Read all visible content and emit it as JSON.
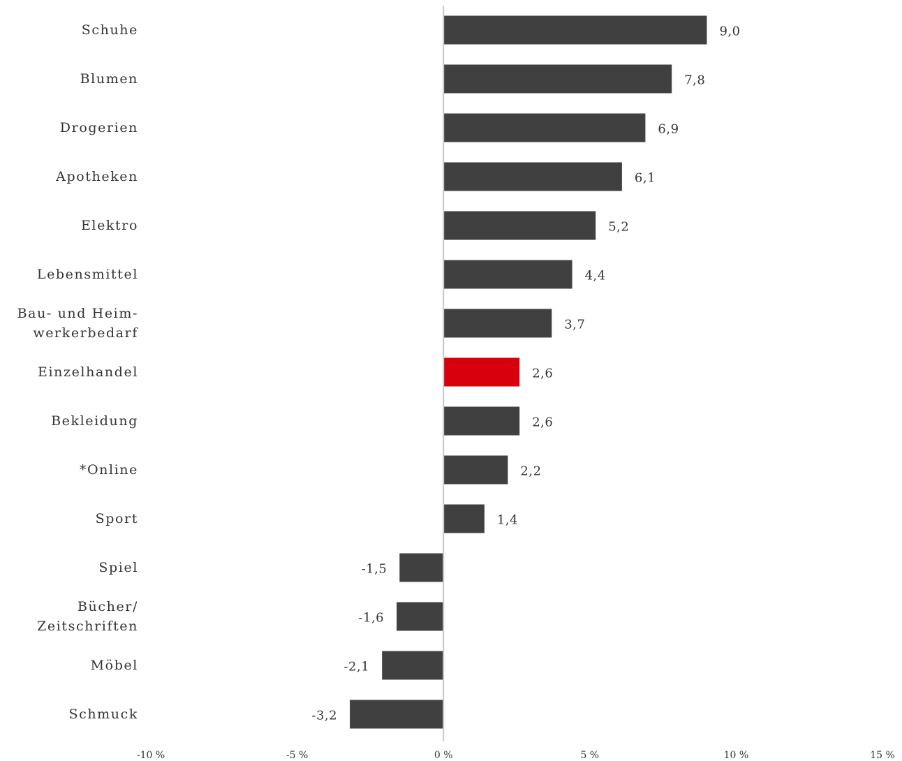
{
  "chart_data": {
    "type": "bar",
    "orientation": "horizontal",
    "categories": [
      "Schuhe",
      "Blumen",
      "Drogerien",
      "Apotheken",
      "Elektro",
      "Lebensmittel",
      "Bau- und Heim-\nwerkerbedarf",
      "Einzelhandel",
      "Bekleidung",
      "*Online",
      "Sport",
      "Spiel",
      "Bücher/\nZeitschriften",
      "Möbel",
      "Schmuck"
    ],
    "values": [
      9.0,
      7.8,
      6.9,
      6.1,
      5.2,
      4.4,
      3.7,
      2.6,
      2.6,
      2.2,
      1.4,
      -1.5,
      -1.6,
      -2.1,
      -3.2
    ],
    "value_labels": [
      "9,0",
      "7,8",
      "6,9",
      "6,1",
      "5,2",
      "4,4",
      "3,7",
      "2,6",
      "2,6",
      "2,2",
      "1,4",
      "-1,5",
      "-1,6",
      "-2,1",
      "-3,2"
    ],
    "highlight_category": "Einzelhandel",
    "xlim": [
      -10,
      15
    ],
    "xticks": [
      -10,
      -5,
      0,
      5,
      10,
      15
    ],
    "xtick_labels": [
      "-10 %",
      "-5 %",
      "0 %",
      "5 %",
      "10 %",
      "15 %"
    ],
    "title": "",
    "xlabel": "",
    "ylabel": "",
    "grid": false,
    "legend": "none",
    "colors": {
      "bar": "#404040",
      "highlight": "#d9000d",
      "zero_line": "#c8c8c8",
      "text": "#333333"
    }
  }
}
